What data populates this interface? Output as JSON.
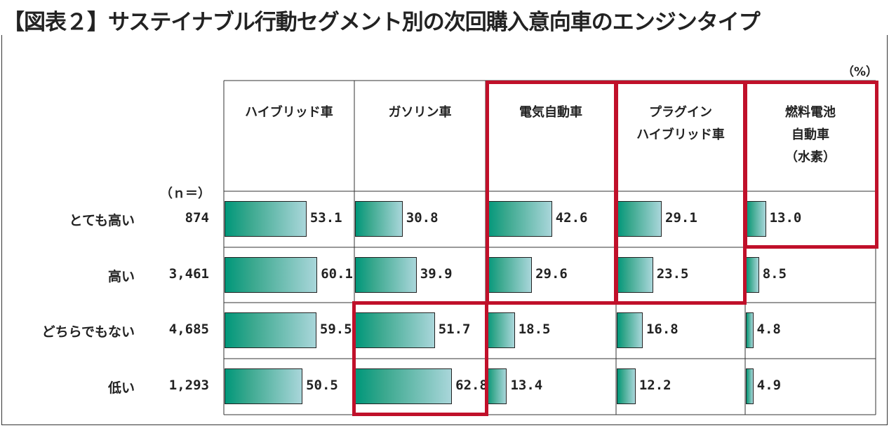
{
  "chart_data": {
    "type": "bar",
    "title": "【図表２】サステイナブル行動セグメント別の次回購入意向車のエンジンタイプ",
    "unit": "（%）",
    "n_label": "（ｎ＝）",
    "categories": [
      "とても高い",
      "高い",
      "どちらでもない",
      "低い"
    ],
    "n": [
      "874",
      "3,461",
      "4,685",
      "1,293"
    ],
    "series": [
      {
        "name": "ハイブリッド車",
        "values": [
          53.1,
          60.1,
          59.5,
          50.5
        ]
      },
      {
        "name": "ガソリン車",
        "values": [
          30.8,
          39.9,
          51.7,
          62.8
        ]
      },
      {
        "name": "電気自動車",
        "values": [
          42.6,
          29.6,
          18.5,
          13.4
        ]
      },
      {
        "name": "プラグイン\nハイブリッド車",
        "values": [
          29.1,
          23.5,
          16.8,
          12.2
        ]
      },
      {
        "name": "燃料電池\n自動車\n（水素）",
        "values": [
          13.0,
          8.5,
          4.8,
          4.9
        ]
      }
    ],
    "highlight_color": "#c0102a",
    "bar_color_start": "#00977a",
    "bar_color_end": "#a9d6da"
  }
}
